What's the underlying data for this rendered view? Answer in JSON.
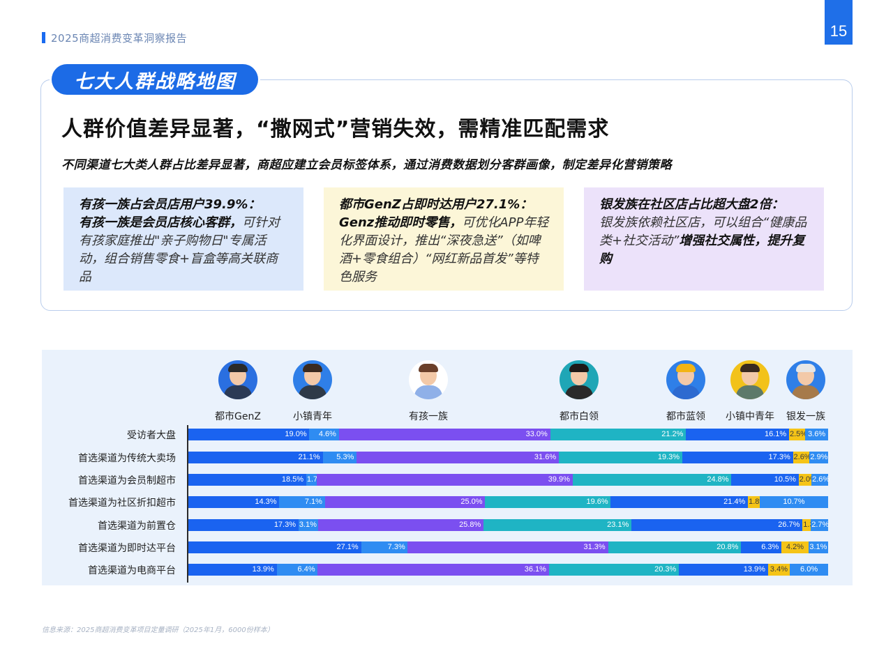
{
  "header": {
    "report_title": "2025商超消费变革洞察报告",
    "page_number": "15"
  },
  "section": {
    "pill": "七大人群战略地图",
    "headline": "人群价值差异显著，“撒网式”营销失效，需精准匹配需求",
    "subline": "不同渠道七大类人群占比差异显著，商超应建立会员标签体系，通过消费数据划分客群画像，制定差异化营销策略"
  },
  "cards": [
    {
      "title": "有孩一族占会员店用户39.9%：",
      "emph": "有孩一族是会员店核心客群，",
      "body": "可针对有孩家庭推出\"亲子购物日\"专属活动，组合销售零食+盲盒等高关联商品",
      "tail": ""
    },
    {
      "title": "都市GenZ占即时达用户27.1%：",
      "emph": "Genz推动即时零售，",
      "body": "可优化APP年轻化界面设计，推出“深夜急送”（如啤酒+零食组合）“网红新品首发”等特色服务",
      "tail": ""
    },
    {
      "title": "银发族在社区店占比超大盘2倍：",
      "emph": "",
      "body": "银发族依赖社区店，可以组合“健康品类+社交活动”",
      "tail": "增强社交属性，提升复购"
    }
  ],
  "colors": {
    "background_panel": "#eaf2fc",
    "segments": [
      "#1a63f0",
      "#2f8cf2",
      "#7b4ff0",
      "#1fb4c4",
      "#1a63f0",
      "#f5c417",
      "#2f8cf2"
    ]
  },
  "personas": [
    {
      "label": "都市GenZ",
      "icon": "genz-avatar-icon",
      "bg": "#2a6fe0",
      "hair": "#2a2a2a",
      "body": "#2b3a55"
    },
    {
      "label": "小镇青年",
      "icon": "town-youth-avatar-icon",
      "bg": "#2f7fe8",
      "hair": "#3a2a20",
      "body": "#2f3a48"
    },
    {
      "label": "有孩一族",
      "icon": "family-avatar-icon",
      "bg": "#ffffff",
      "hair": "#6a3f2a",
      "body": "#8fb0e8"
    },
    {
      "label": "都市白领",
      "icon": "white-collar-avatar-icon",
      "bg": "#1fa6b6",
      "hair": "#1f1a18",
      "body": "#2a2a2a"
    },
    {
      "label": "都市蓝领",
      "icon": "blue-collar-avatar-icon",
      "bg": "#2f7fe8",
      "hair": "#f2b415",
      "body": "#2d6ad0"
    },
    {
      "label": "小镇中青年",
      "icon": "middle-aged-avatar-icon",
      "bg": "#f2c21a",
      "hair": "#3a2a20",
      "body": "#5d7a6a"
    },
    {
      "label": "银发一族",
      "icon": "senior-avatar-icon",
      "bg": "#2f7fe8",
      "hair": "#e6e6e6",
      "body": "#a67a4a"
    }
  ],
  "chart_data": {
    "type": "bar",
    "orientation": "horizontal",
    "stacked": true,
    "normalized": true,
    "series_names": [
      "都市GenZ",
      "小镇青年",
      "有孩一族",
      "都市白领",
      "都市蓝领",
      "小镇中青年",
      "银发一族"
    ],
    "categories": [
      "受访者大盘",
      "首选渠道为传统大卖场",
      "首选渠道为会员制超市",
      "首选渠道为社区折扣超市",
      "首选渠道为前置仓",
      "首选渠道为即时达平台",
      "首选渠道为电商平台"
    ],
    "values": [
      [
        19.0,
        4.6,
        33.0,
        21.2,
        16.1,
        2.5,
        3.6
      ],
      [
        21.1,
        5.3,
        31.6,
        19.3,
        17.3,
        2.6,
        2.9
      ],
      [
        18.5,
        1.7,
        39.9,
        24.8,
        10.5,
        2.0,
        2.6
      ],
      [
        14.3,
        7.1,
        25.0,
        19.6,
        21.4,
        1.8,
        10.7
      ],
      [
        17.3,
        3.1,
        25.8,
        23.1,
        26.7,
        1.3,
        2.7
      ],
      [
        27.1,
        7.3,
        31.3,
        20.8,
        6.3,
        4.2,
        3.1
      ],
      [
        13.9,
        6.4,
        36.1,
        20.3,
        13.9,
        3.4,
        6.0
      ]
    ],
    "labels": [
      [
        "19.0%",
        "4.6%",
        "33.0%",
        "21.2%",
        "16.1%",
        "2.5%",
        "3.6%"
      ],
      [
        "21.1%",
        "5.3%",
        "31.6%",
        "19.3%",
        "17.3%",
        "2.6%",
        "2.9%"
      ],
      [
        "18.5%",
        "1.7%",
        "39.9%",
        "24.8%",
        "10.5%",
        "2.0%",
        "2.6%"
      ],
      [
        "14.3%",
        "7.1%",
        "25.0%",
        "19.6%",
        "21.4%",
        "1.8%",
        "10.7%"
      ],
      [
        "17.3%",
        "3.1%",
        "25.8%",
        "23.1%",
        "26.7%",
        "1.3%",
        "2.7%"
      ],
      [
        "27.1%",
        "7.3%",
        "31.3%",
        "20.8%",
        "6.3%",
        "4.2%",
        "3.1%"
      ],
      [
        "13.9%",
        "6.4%",
        "36.1%",
        "20.3%",
        "13.9%",
        "3.4%",
        "6.0%"
      ]
    ],
    "title": "",
    "xlabel": "",
    "ylabel": "",
    "legend": "top"
  },
  "source": "信息来源：2025商超消费变革项目定量调研（2025年1月，6000份样本）"
}
